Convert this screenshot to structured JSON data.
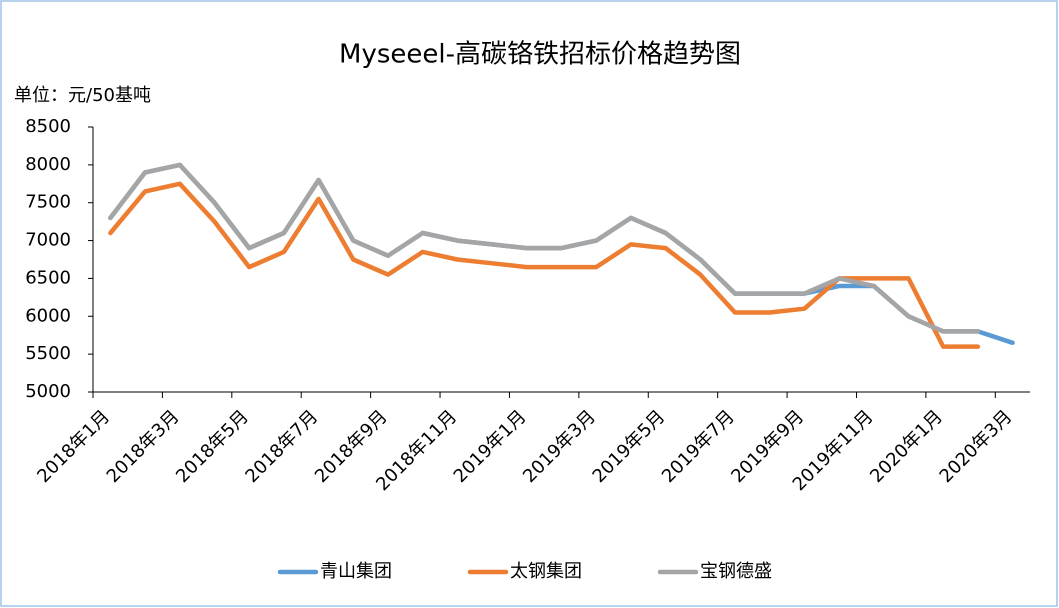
{
  "chart_data": {
    "type": "line",
    "title": "Myseeel-高碳铬铁招标价格趋势图",
    "y_label": "单位：元/50基吨",
    "categories": [
      "2018年1月",
      null,
      "2018年3月",
      null,
      "2018年5月",
      null,
      "2018年7月",
      null,
      "2018年9月",
      null,
      "2018年11月",
      null,
      "2019年1月",
      null,
      "2019年3月",
      null,
      "2019年5月",
      null,
      "2019年7月",
      null,
      "2019年9月",
      null,
      "2019年11月",
      null,
      "2020年1月",
      null,
      "2020年3月"
    ],
    "series": [
      {
        "name": "青山集团",
        "color": "#5b9bd5",
        "values": [
          7300,
          7900,
          8000,
          7500,
          6900,
          7100,
          7800,
          7000,
          6800,
          7100,
          7000,
          6950,
          6900,
          6900,
          7000,
          7300,
          7100,
          6750,
          6300,
          6300,
          6300,
          6400,
          6400,
          6000,
          5800,
          5800,
          5650
        ]
      },
      {
        "name": "太钢集团",
        "color": "#ed7d31",
        "values": [
          7100,
          7650,
          7750,
          7250,
          6650,
          6850,
          7550,
          6750,
          6550,
          6850,
          6750,
          6700,
          6650,
          6650,
          6650,
          6950,
          6900,
          6550,
          6050,
          6050,
          6100,
          6500,
          6500,
          6500,
          5600,
          5600,
          null
        ]
      },
      {
        "name": "宝钢德盛",
        "color": "#a5a5a5",
        "values": [
          7300,
          7900,
          8000,
          7500,
          6900,
          7100,
          7800,
          7000,
          6800,
          7100,
          7000,
          6950,
          6900,
          6900,
          7000,
          7300,
          7100,
          6750,
          6300,
          6300,
          6300,
          6500,
          6400,
          6000,
          5800,
          5800,
          null
        ]
      }
    ],
    "ylim": [
      5000,
      8500
    ],
    "yticks": [
      5000,
      5500,
      6000,
      6500,
      7000,
      7500,
      8000,
      8500
    ],
    "grid": false,
    "legend": "bottom"
  }
}
